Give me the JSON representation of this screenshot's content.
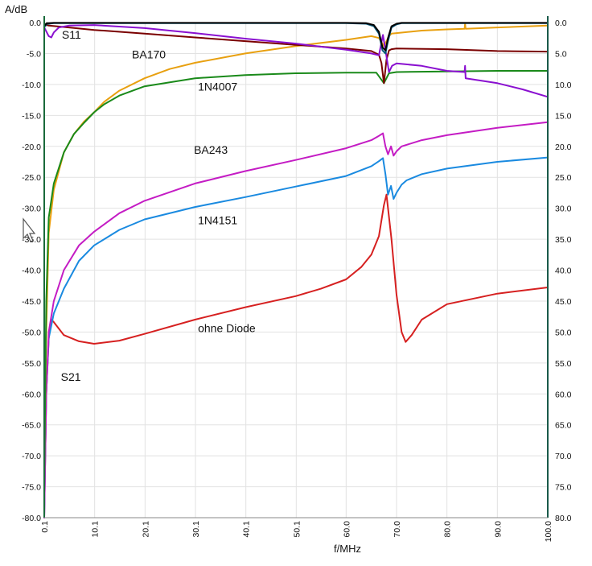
{
  "chart_data": {
    "type": "line",
    "title": "",
    "ylabel": "A/dB",
    "xlabel": "f/MHz",
    "xlim": [
      0.1,
      100.0
    ],
    "ylim": [
      -80.0,
      0.0
    ],
    "grid": true,
    "legend": "none",
    "x_ticks": [
      "0.1",
      "10.1",
      "20.1",
      "30.1",
      "40.1",
      "50.1",
      "60.0",
      "70.0",
      "80.0",
      "90.0",
      "100.0"
    ],
    "y_ticks_left": [
      "0.0",
      "-5.0",
      "-10.0",
      "-15.0",
      "-20.0",
      "-25.0",
      "-30.0",
      "-35.0",
      "-40.0",
      "-45.0",
      "-50.0",
      "-55.0",
      "-60.0",
      "-65.0",
      "-70.0",
      "-75.0",
      "-80.0"
    ],
    "y_ticks_right": [
      "0.0",
      "5.0",
      "10.0",
      "15.0",
      "20.0",
      "25.0",
      "30.0",
      "35.0",
      "40.0",
      "45.0",
      "50.0",
      "55.0",
      "60.0",
      "65.0",
      "70.0",
      "75.0",
      "80.0"
    ],
    "annotations": [
      {
        "text": "S11",
        "x": 3.6,
        "y": -2.6
      },
      {
        "text": "BA170",
        "x": 17.5,
        "y": -5.8
      },
      {
        "text": "1N4007",
        "x": 30.6,
        "y": -11.0
      },
      {
        "text": "BA243",
        "x": 29.8,
        "y": -21.2
      },
      {
        "text": "1N4151",
        "x": 30.6,
        "y": -32.6
      },
      {
        "text": "ohne Diode",
        "x": 30.6,
        "y": -50.0
      },
      {
        "text": "S21",
        "x": 3.4,
        "y": -57.9
      }
    ],
    "series": [
      {
        "color": "#d62020",
        "x": [
          0.1,
          0.5,
          1.0,
          1.5,
          2.0,
          4.0,
          7.0,
          10.0,
          15.0,
          20.0,
          30.0,
          40.0,
          50.0,
          55.0,
          60.0,
          63.0,
          65.0,
          66.5,
          67.5,
          68.0,
          69.0,
          70.0,
          71.0,
          71.8,
          73.0,
          75.0,
          80.0,
          90.0,
          100.0
        ],
        "y": [
          -80.0,
          -60.0,
          -51.0,
          -48.0,
          -48.4,
          -50.5,
          -51.5,
          -51.9,
          -51.4,
          -50.3,
          -48.0,
          -46.0,
          -44.2,
          -43.0,
          -41.5,
          -39.5,
          -37.5,
          -34.5,
          -29.5,
          -27.8,
          -35.0,
          -44.0,
          -50.0,
          -51.6,
          -50.5,
          -48.0,
          -45.5,
          -43.8,
          -42.8
        ]
      },
      {
        "color": "#1a8ae0",
        "x": [
          0.1,
          0.5,
          1.0,
          2.0,
          4.0,
          7.0,
          10.0,
          15.0,
          20.0,
          30.0,
          40.0,
          50.0,
          60.0,
          65.0,
          66.5,
          67.3,
          67.8,
          68.3,
          68.9,
          69.4,
          70.0,
          71.0,
          72.0,
          75.0,
          80.0,
          90.0,
          100.0
        ],
        "y": [
          -80.0,
          -60.0,
          -51.0,
          -47.0,
          -43.0,
          -38.5,
          -36.0,
          -33.5,
          -31.8,
          -29.8,
          -28.2,
          -26.5,
          -24.8,
          -23.2,
          -22.4,
          -21.9,
          -24.5,
          -27.8,
          -26.4,
          -28.5,
          -27.5,
          -26.2,
          -25.5,
          -24.5,
          -23.6,
          -22.5,
          -21.8
        ]
      },
      {
        "color": "#c41cc4",
        "x": [
          0.1,
          0.5,
          1.0,
          2.0,
          4.0,
          7.0,
          10.0,
          15.0,
          20.0,
          30.0,
          40.0,
          50.0,
          60.0,
          65.0,
          66.5,
          67.3,
          67.8,
          68.3,
          68.9,
          69.4,
          70.0,
          71.0,
          75.0,
          80.0,
          90.0,
          100.0
        ],
        "y": [
          -80.0,
          -60.0,
          -50.0,
          -45.0,
          -40.0,
          -36.0,
          -33.8,
          -30.8,
          -28.8,
          -26.0,
          -24.0,
          -22.2,
          -20.3,
          -19.0,
          -18.3,
          -17.9,
          -20.0,
          -21.3,
          -20.0,
          -21.5,
          -20.8,
          -20.0,
          -19.0,
          -18.2,
          -17.0,
          -16.1
        ]
      },
      {
        "color": "#e8a010",
        "x": [
          0.1,
          0.5,
          1.0,
          2.0,
          4.0,
          6.0,
          8.0,
          10.0,
          12.0,
          15.0,
          20.0,
          25.0,
          30.0,
          40.0,
          50.0,
          60.0,
          65.0,
          66.5,
          67.5,
          68.0,
          68.5,
          69.0,
          70.0,
          75.0,
          80.0,
          83.5,
          83.6,
          83.7,
          90.0,
          100.0
        ],
        "y": [
          -70.0,
          -50.0,
          -34.0,
          -27.0,
          -21.0,
          -18.0,
          -16.0,
          -14.5,
          -12.8,
          -11.0,
          -9.0,
          -7.5,
          -6.5,
          -5.0,
          -3.8,
          -2.8,
          -2.2,
          -2.5,
          -3.8,
          -3.0,
          -2.2,
          -1.8,
          -1.7,
          -1.3,
          -1.1,
          -1.0,
          -0.2,
          -1.0,
          -0.8,
          -0.5
        ]
      },
      {
        "color": "#1a8a1a",
        "x": [
          0.1,
          0.5,
          1.0,
          2.0,
          4.0,
          6.0,
          8.0,
          10.0,
          12.0,
          15.0,
          20.0,
          30.0,
          40.0,
          50.0,
          60.0,
          66.0,
          67.5,
          68.5,
          70.0,
          80.0,
          90.0,
          100.0
        ],
        "y": [
          -75.0,
          -45.0,
          -31.5,
          -26.0,
          -21.0,
          -18.0,
          -16.2,
          -14.5,
          -13.2,
          -11.8,
          -10.3,
          -9.0,
          -8.5,
          -8.2,
          -8.1,
          -8.1,
          -9.8,
          -8.2,
          -8.0,
          -7.9,
          -7.8,
          -7.8
        ]
      },
      {
        "color": "#7a0000",
        "x": [
          0.1,
          1.0,
          5.0,
          10.0,
          20.0,
          30.0,
          40.0,
          50.0,
          60.0,
          65.0,
          66.5,
          67.0,
          67.5,
          68.0,
          68.5,
          69.0,
          70.0,
          80.0,
          90.0,
          100.0
        ],
        "y": [
          -0.3,
          -0.5,
          -0.8,
          -1.2,
          -1.8,
          -2.4,
          -3.0,
          -3.6,
          -4.2,
          -4.6,
          -5.2,
          -6.5,
          -9.8,
          -6.0,
          -4.5,
          -4.3,
          -4.2,
          -4.3,
          -4.6,
          -4.7
        ]
      },
      {
        "color": "#8a10d0",
        "x": [
          0.1,
          1.0,
          1.5,
          2.0,
          3.0,
          5.0,
          10.0,
          20.0,
          30.0,
          40.0,
          50.0,
          60.0,
          65.0,
          66.5,
          67.3,
          67.9,
          68.5,
          69.1,
          70.0,
          75.0,
          80.0,
          83.5,
          83.6,
          83.7,
          90.0,
          95.0,
          100.0
        ],
        "y": [
          -0.8,
          -2.2,
          -2.4,
          -1.6,
          -0.8,
          -0.5,
          -0.4,
          -0.9,
          -1.7,
          -2.6,
          -3.4,
          -4.4,
          -5.0,
          -5.3,
          -2.0,
          -5.0,
          -8.0,
          -7.0,
          -6.6,
          -7.0,
          -7.8,
          -8.0,
          -7.0,
          -9.0,
          -9.8,
          -10.8,
          -12.0
        ]
      },
      {
        "color": "#0a5a7a",
        "x": [
          0.1,
          0.3,
          0.6,
          1.0,
          2.0,
          10.0,
          30.0,
          50.0,
          60.0,
          64.0,
          65.5,
          66.5,
          67.2,
          67.8,
          68.3,
          69.0,
          70.0,
          71.0,
          80.0,
          100.0
        ],
        "y": [
          -0.2,
          -0.6,
          -0.2,
          -0.2,
          -0.1,
          -0.1,
          -0.1,
          -0.1,
          -0.1,
          -0.2,
          -0.6,
          -1.8,
          -4.5,
          -5.0,
          -3.0,
          -0.8,
          -0.3,
          -0.1,
          -0.1,
          -0.1
        ]
      },
      {
        "color": "#000000",
        "x": [
          0.1,
          0.3,
          0.6,
          1.0,
          2.0,
          10.0,
          30.0,
          50.0,
          60.0,
          64.0,
          65.5,
          66.5,
          67.2,
          67.8,
          68.3,
          69.0,
          70.0,
          71.0,
          80.0,
          100.0
        ],
        "y": [
          -0.1,
          -0.4,
          -0.1,
          -0.1,
          -0.05,
          -0.05,
          -0.05,
          -0.05,
          -0.05,
          -0.1,
          -0.4,
          -1.5,
          -4.0,
          -4.5,
          -2.5,
          -0.6,
          -0.2,
          -0.05,
          -0.05,
          -0.05
        ]
      }
    ]
  }
}
